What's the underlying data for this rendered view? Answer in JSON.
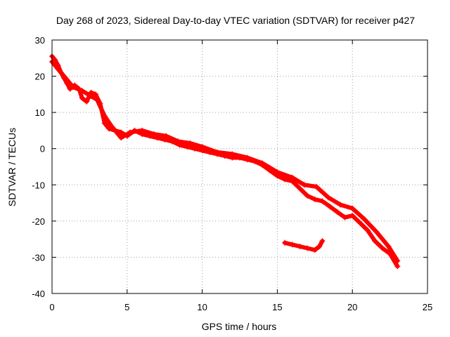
{
  "chart_data": {
    "type": "scatter",
    "title": "Day 268 of 2023, Sidereal Day-to-day VTEC variation (SDTVAR) for receiver p427",
    "xlabel": "GPS time / hours",
    "ylabel": "SDTVAR / TECUs",
    "xlim": [
      0,
      25
    ],
    "ylim": [
      -40,
      30
    ],
    "xticks": [
      0,
      5,
      10,
      15,
      20,
      25
    ],
    "yticks": [
      -40,
      -30,
      -20,
      -10,
      0,
      10,
      20,
      30
    ],
    "grid": true,
    "legend": "none",
    "color": "#ff0000",
    "series": [
      {
        "name": "main-trace",
        "points": [
          [
            0.0,
            25.5
          ],
          [
            0.2,
            24.5
          ],
          [
            0.4,
            23.0
          ],
          [
            0.6,
            21.0
          ],
          [
            0.8,
            19.5
          ],
          [
            1.0,
            18.0
          ],
          [
            1.2,
            16.5
          ],
          [
            1.5,
            17.5
          ],
          [
            1.8,
            16.5
          ],
          [
            2.0,
            14.0
          ],
          [
            2.3,
            13.0
          ],
          [
            2.6,
            15.5
          ],
          [
            2.9,
            15.0
          ],
          [
            3.2,
            12.5
          ],
          [
            3.5,
            7.0
          ],
          [
            3.8,
            5.5
          ],
          [
            4.2,
            5.0
          ],
          [
            4.6,
            4.5
          ],
          [
            5.0,
            3.5
          ],
          [
            5.5,
            5.0
          ],
          [
            6.0,
            4.0
          ],
          [
            6.5,
            3.5
          ],
          [
            7.0,
            3.0
          ],
          [
            7.5,
            2.5
          ],
          [
            8.0,
            2.0
          ],
          [
            8.5,
            1.0
          ],
          [
            9.0,
            0.5
          ],
          [
            9.5,
            0.0
          ],
          [
            10.0,
            -0.5
          ],
          [
            10.5,
            -1.0
          ],
          [
            11.0,
            -1.5
          ],
          [
            11.5,
            -2.0
          ],
          [
            12.0,
            -2.5
          ],
          [
            12.5,
            -2.5
          ],
          [
            13.0,
            -3.0
          ],
          [
            13.5,
            -3.5
          ],
          [
            14.0,
            -4.5
          ],
          [
            14.5,
            -6.0
          ],
          [
            15.0,
            -7.5
          ],
          [
            15.5,
            -8.5
          ],
          [
            16.0,
            -9.0
          ],
          [
            16.5,
            -11.0
          ],
          [
            17.0,
            -13.0
          ],
          [
            17.5,
            -14.0
          ],
          [
            18.0,
            -14.5
          ],
          [
            18.5,
            -16.0
          ],
          [
            19.0,
            -17.5
          ],
          [
            19.5,
            -19.0
          ],
          [
            20.0,
            -18.5
          ],
          [
            20.5,
            -20.5
          ],
          [
            21.0,
            -22.5
          ],
          [
            21.5,
            -25.5
          ],
          [
            22.0,
            -27.5
          ],
          [
            22.5,
            -29.0
          ],
          [
            23.0,
            -32.5
          ]
        ]
      },
      {
        "name": "upper-band",
        "points": [
          [
            0.0,
            24.0
          ],
          [
            0.4,
            22.0
          ],
          [
            0.8,
            20.0
          ],
          [
            1.4,
            17.0
          ],
          [
            2.0,
            16.0
          ],
          [
            2.6,
            14.5
          ],
          [
            3.0,
            13.5
          ],
          [
            3.5,
            9.0
          ],
          [
            4.0,
            6.0
          ],
          [
            4.6,
            3.0
          ],
          [
            5.2,
            4.5
          ],
          [
            6.0,
            5.0
          ],
          [
            6.8,
            4.0
          ],
          [
            7.6,
            3.5
          ],
          [
            8.4,
            2.0
          ],
          [
            9.2,
            1.5
          ],
          [
            10.0,
            0.5
          ],
          [
            11.0,
            -1.0
          ],
          [
            12.0,
            -1.5
          ],
          [
            13.0,
            -2.5
          ],
          [
            14.0,
            -4.0
          ],
          [
            15.0,
            -6.5
          ],
          [
            16.0,
            -8.0
          ],
          [
            16.8,
            -10.0
          ],
          [
            17.6,
            -10.5
          ],
          [
            18.4,
            -13.5
          ],
          [
            19.2,
            -15.5
          ],
          [
            20.0,
            -16.5
          ],
          [
            20.8,
            -19.5
          ],
          [
            21.6,
            -23.0
          ],
          [
            22.4,
            -27.0
          ],
          [
            23.0,
            -31.0
          ]
        ]
      },
      {
        "name": "isolated-segment",
        "points": [
          [
            15.5,
            -26.0
          ],
          [
            16.0,
            -26.5
          ],
          [
            16.5,
            -27.0
          ],
          [
            17.0,
            -27.5
          ],
          [
            17.5,
            -28.0
          ],
          [
            17.8,
            -27.0
          ],
          [
            18.0,
            -25.5
          ]
        ]
      }
    ]
  }
}
